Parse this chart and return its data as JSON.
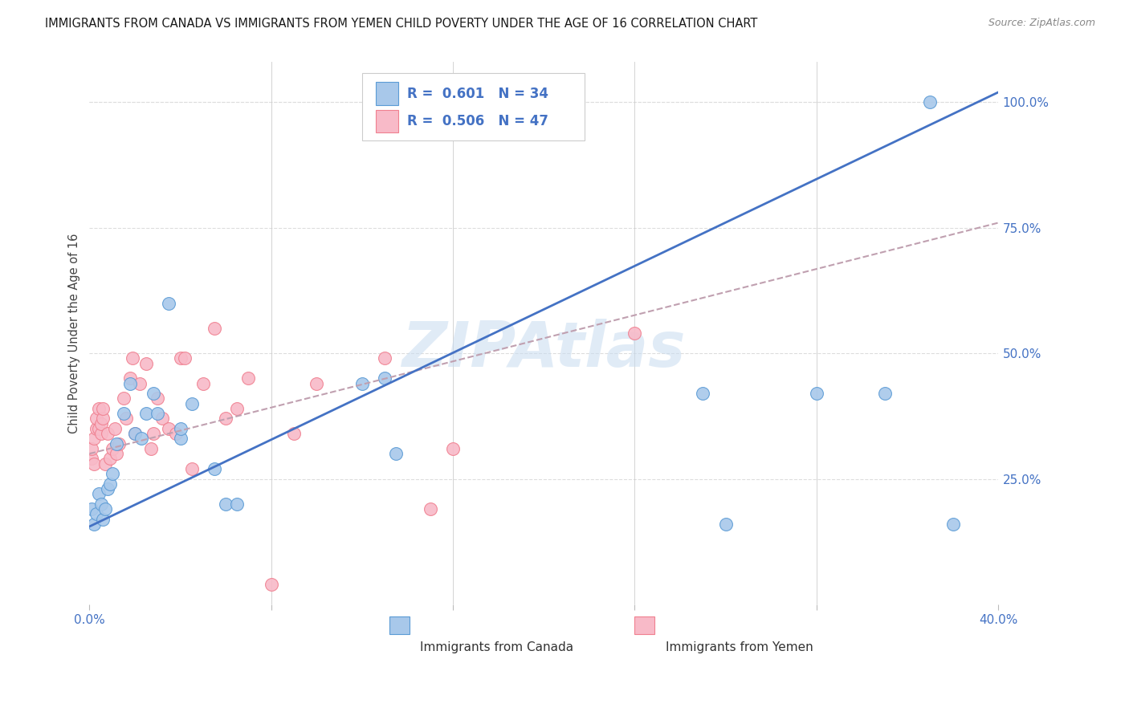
{
  "title": "IMMIGRANTS FROM CANADA VS IMMIGRANTS FROM YEMEN CHILD POVERTY UNDER THE AGE OF 16 CORRELATION CHART",
  "source": "Source: ZipAtlas.com",
  "ylabel": "Child Poverty Under the Age of 16",
  "watermark": "ZIPAtlas",
  "xlim": [
    0.0,
    0.4
  ],
  "ylim": [
    0.0,
    1.08
  ],
  "xticks": [
    0.0,
    0.08,
    0.16,
    0.24,
    0.32,
    0.4
  ],
  "xticklabels": [
    "0.0%",
    "",
    "",
    "",
    "",
    "40.0%"
  ],
  "yticks_right": [
    0.25,
    0.5,
    0.75,
    1.0
  ],
  "ytick_labels_right": [
    "25.0%",
    "50.0%",
    "75.0%",
    "100.0%"
  ],
  "canada_R": "0.601",
  "canada_N": "34",
  "yemen_R": "0.506",
  "yemen_N": "47",
  "canada_fill_color": "#A8C8EA",
  "yemen_fill_color": "#F8BAC8",
  "canada_edge_color": "#5B9BD5",
  "yemen_edge_color": "#F08090",
  "canada_line_color": "#4472C4",
  "yemen_line_color": "#D0A0B0",
  "background_color": "#FFFFFF",
  "grid_color": "#DDDDDD",
  "canada_scatter_x": [
    0.001,
    0.002,
    0.003,
    0.004,
    0.005,
    0.006,
    0.007,
    0.008,
    0.009,
    0.01,
    0.012,
    0.015,
    0.018,
    0.02,
    0.023,
    0.025,
    0.028,
    0.03,
    0.035,
    0.04,
    0.04,
    0.045,
    0.055,
    0.06,
    0.065,
    0.12,
    0.13,
    0.135,
    0.27,
    0.28,
    0.32,
    0.35,
    0.37,
    0.38
  ],
  "canada_scatter_y": [
    0.19,
    0.16,
    0.18,
    0.22,
    0.2,
    0.17,
    0.19,
    0.23,
    0.24,
    0.26,
    0.32,
    0.38,
    0.44,
    0.34,
    0.33,
    0.38,
    0.42,
    0.38,
    0.6,
    0.33,
    0.35,
    0.4,
    0.27,
    0.2,
    0.2,
    0.44,
    0.45,
    0.3,
    0.42,
    0.16,
    0.42,
    0.42,
    1.0,
    0.16
  ],
  "yemen_scatter_x": [
    0.001,
    0.001,
    0.002,
    0.002,
    0.003,
    0.003,
    0.004,
    0.004,
    0.005,
    0.005,
    0.006,
    0.006,
    0.007,
    0.008,
    0.009,
    0.01,
    0.011,
    0.012,
    0.013,
    0.015,
    0.016,
    0.018,
    0.019,
    0.02,
    0.022,
    0.025,
    0.027,
    0.028,
    0.03,
    0.032,
    0.035,
    0.038,
    0.04,
    0.042,
    0.045,
    0.05,
    0.055,
    0.06,
    0.065,
    0.07,
    0.08,
    0.09,
    0.1,
    0.13,
    0.15,
    0.16,
    0.24
  ],
  "yemen_scatter_y": [
    0.29,
    0.31,
    0.28,
    0.33,
    0.35,
    0.37,
    0.35,
    0.39,
    0.34,
    0.36,
    0.37,
    0.39,
    0.28,
    0.34,
    0.29,
    0.31,
    0.35,
    0.3,
    0.32,
    0.41,
    0.37,
    0.45,
    0.49,
    0.34,
    0.44,
    0.48,
    0.31,
    0.34,
    0.41,
    0.37,
    0.35,
    0.34,
    0.49,
    0.49,
    0.27,
    0.44,
    0.55,
    0.37,
    0.39,
    0.45,
    0.04,
    0.34,
    0.44,
    0.49,
    0.19,
    0.31,
    0.54
  ],
  "canada_trend_x": [
    0.0,
    0.4
  ],
  "canada_trend_y": [
    0.155,
    1.02
  ],
  "yemen_trend_x": [
    0.0,
    0.4
  ],
  "yemen_trend_y": [
    0.3,
    0.76
  ]
}
